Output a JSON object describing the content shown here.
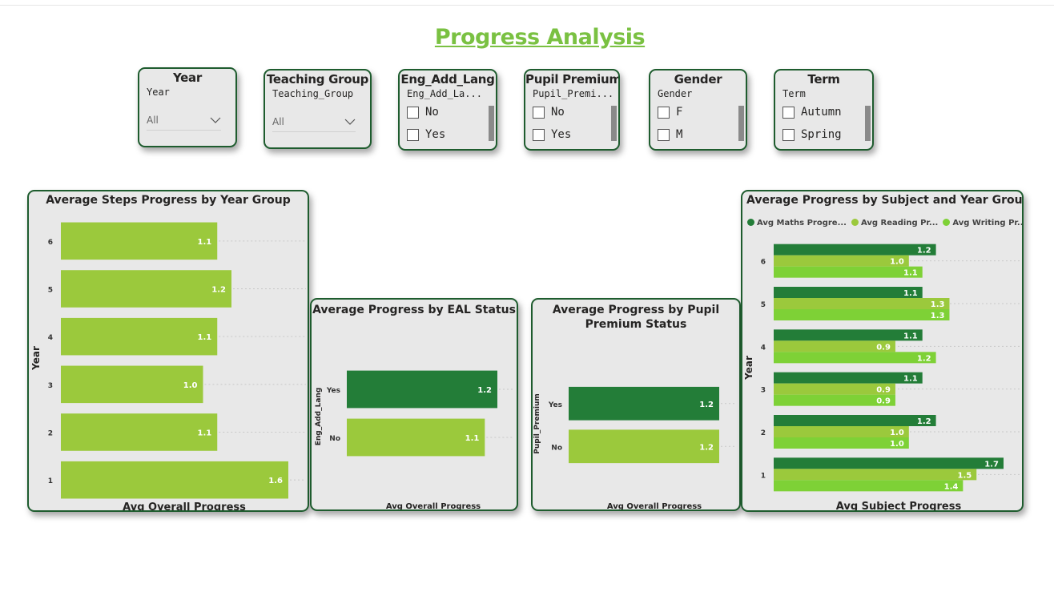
{
  "page": {
    "title": "Progress Analysis"
  },
  "colors": {
    "light": "#9bc93c",
    "dark": "#237d38",
    "mid": "#7ed136",
    "title": "#7ac142",
    "border": "#1e5c2e"
  },
  "slicers": {
    "year": {
      "title": "Year",
      "field": "Year",
      "value": "All"
    },
    "teaching_group": {
      "title": "Teaching Group",
      "field": "Teaching_Group",
      "value": "All"
    },
    "eal": {
      "title": "Eng_Add_Lang",
      "field": "Eng_Add_La...",
      "options": [
        "No",
        "Yes"
      ]
    },
    "pupil_premium": {
      "title": "Pupil Premium",
      "field": "Pupil_Premi...",
      "options": [
        "No",
        "Yes"
      ]
    },
    "gender": {
      "title": "Gender",
      "field": "Gender",
      "options": [
        "F",
        "M"
      ]
    },
    "term": {
      "title": "Term",
      "field": "Term",
      "options": [
        "Autumn",
        "Spring"
      ]
    }
  },
  "chart_data": [
    {
      "type": "bar",
      "orientation": "horizontal",
      "title": "Average Steps Progress by Year Group",
      "xlabel": "Avg Overall Progress",
      "ylabel": "Year",
      "categories": [
        "6",
        "5",
        "4",
        "3",
        "2",
        "1"
      ],
      "values": [
        1.1,
        1.2,
        1.1,
        1.0,
        1.1,
        1.6
      ],
      "value_labels": [
        "1.1",
        "1.2",
        "1.1",
        "1.0",
        "1.1",
        "1.6"
      ],
      "xlim": [
        0,
        1.6
      ]
    },
    {
      "type": "bar",
      "orientation": "horizontal",
      "title": "Average Progress by EAL Status",
      "xlabel": "Avg Overall Progress",
      "ylabel": "Eng_Add_Lang",
      "categories": [
        "Yes",
        "No"
      ],
      "values": [
        1.2,
        1.1
      ],
      "value_labels": [
        "1.2",
        "1.1"
      ],
      "xlim": [
        0,
        1.2
      ]
    },
    {
      "type": "bar",
      "orientation": "horizontal",
      "title": "Average Progress by Pupil Premium Status",
      "xlabel": "Avg Overall Progress",
      "ylabel": "Pupil_Premium",
      "categories": [
        "Yes",
        "No"
      ],
      "values": [
        1.2,
        1.2
      ],
      "value_labels": [
        "1.2",
        "1.2"
      ],
      "xlim": [
        0,
        1.2
      ]
    },
    {
      "type": "bar",
      "orientation": "horizontal",
      "title": "Average Progress by Subject and Year Group",
      "xlabel": "Avg Subject Progress",
      "ylabel": "Year",
      "categories": [
        "6",
        "5",
        "4",
        "3",
        "2",
        "1"
      ],
      "series": [
        {
          "name": "Avg Maths Progre...",
          "values": [
            1.2,
            1.1,
            1.1,
            1.1,
            1.2,
            1.7
          ],
          "value_labels": [
            "1.2",
            "1.1",
            "1.1",
            "1.1",
            "1.2",
            "1.7"
          ]
        },
        {
          "name": "Avg Reading Pr...",
          "values": [
            1.0,
            1.3,
            0.9,
            0.9,
            1.0,
            1.5
          ],
          "value_labels": [
            "1.0",
            "1.3",
            "0.9",
            "0.9",
            "1.0",
            "1.5"
          ]
        },
        {
          "name": "Avg Writing Pr...",
          "values": [
            1.1,
            1.3,
            1.2,
            0.9,
            1.0,
            1.4
          ],
          "value_labels": [
            "1.1",
            "1.3",
            "1.2",
            "0.9",
            "1.0",
            "1.4"
          ]
        }
      ],
      "legend": "top-left",
      "xlim": [
        0,
        1.7
      ]
    }
  ]
}
